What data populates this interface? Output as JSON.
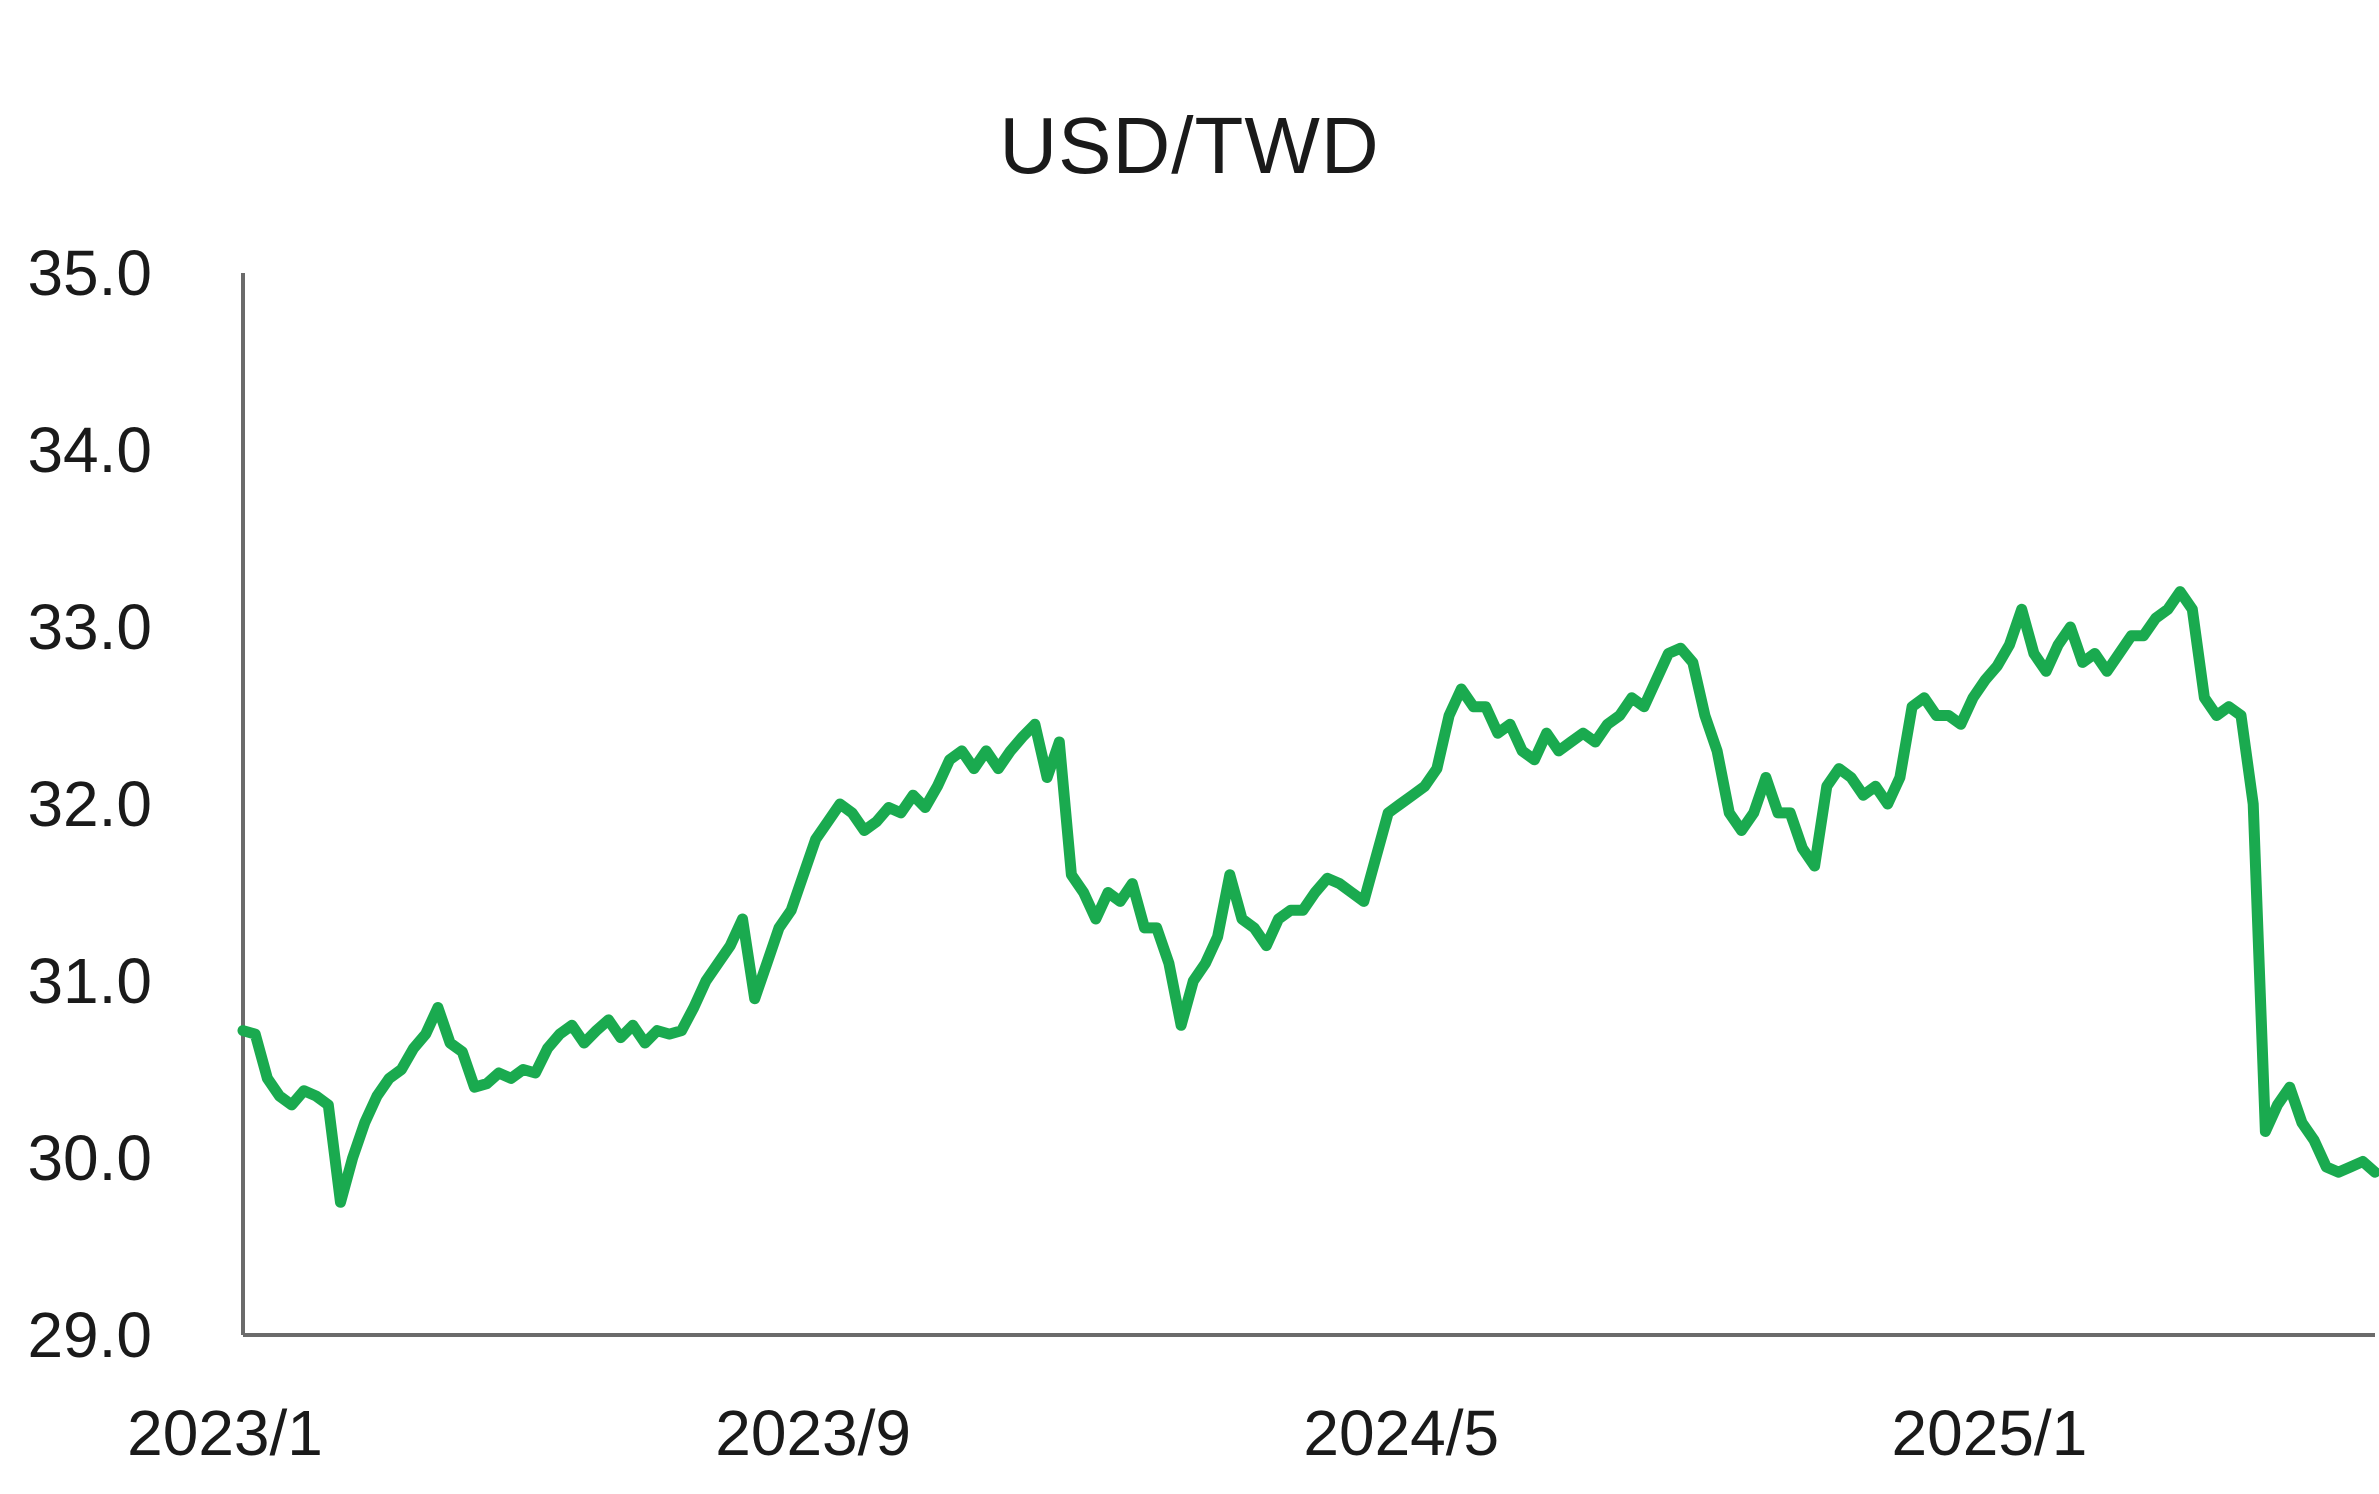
{
  "chart_data": {
    "type": "line",
    "title": "USD/TWD",
    "xlabel": "",
    "ylabel": "",
    "ylim": [
      29.0,
      35.0
    ],
    "yticks": [
      "35.0",
      "34.0",
      "33.0",
      "32.0",
      "31.0",
      "30.0",
      "29.0"
    ],
    "xticks": [
      "2023/1",
      "2023/9",
      "2024/5",
      "2025/1"
    ],
    "xlim": [
      "2023/1",
      "2025/6"
    ],
    "grid": false,
    "legend": "none",
    "line_color": "#1aaa4f",
    "series": [
      {
        "values": [
          30.72,
          30.7,
          30.45,
          30.35,
          30.3,
          30.38,
          30.35,
          30.3,
          29.75,
          30.0,
          30.2,
          30.35,
          30.45,
          30.5,
          30.62,
          30.7,
          30.85,
          30.65,
          30.6,
          30.4,
          30.42,
          30.48,
          30.45,
          30.5,
          30.48,
          30.62,
          30.7,
          30.75,
          30.65,
          30.72,
          30.78,
          30.68,
          30.75,
          30.65,
          30.72,
          30.7,
          30.72,
          30.85,
          31.0,
          31.1,
          31.2,
          31.35,
          30.9,
          31.1,
          31.3,
          31.4,
          31.6,
          31.8,
          31.9,
          32.0,
          31.95,
          31.85,
          31.9,
          31.98,
          31.95,
          32.05,
          31.98,
          32.1,
          32.25,
          32.3,
          32.2,
          32.3,
          32.2,
          32.3,
          32.38,
          32.45,
          32.15,
          32.35,
          31.6,
          31.5,
          31.35,
          31.5,
          31.45,
          31.55,
          31.3,
          31.3,
          31.1,
          30.75,
          31.0,
          31.1,
          31.25,
          31.6,
          31.35,
          31.3,
          31.2,
          31.35,
          31.4,
          31.4,
          31.5,
          31.58,
          31.55,
          31.5,
          31.45,
          31.7,
          31.95,
          32.0,
          32.05,
          32.1,
          32.2,
          32.5,
          32.65,
          32.55,
          32.55,
          32.4,
          32.45,
          32.3,
          32.25,
          32.4,
          32.3,
          32.35,
          32.4,
          32.35,
          32.45,
          32.5,
          32.6,
          32.55,
          32.7,
          32.85,
          32.88,
          32.8,
          32.5,
          32.3,
          31.95,
          31.85,
          31.95,
          32.15,
          31.95,
          31.95,
          31.75,
          31.65,
          32.1,
          32.2,
          32.15,
          32.05,
          32.1,
          32.0,
          32.15,
          32.55,
          32.6,
          32.5,
          32.5,
          32.45,
          32.6,
          32.7,
          32.78,
          32.9,
          33.1,
          32.85,
          32.75,
          32.9,
          33.0,
          32.8,
          32.85,
          32.75,
          32.85,
          32.95,
          32.95,
          33.05,
          33.1,
          33.2,
          33.1,
          32.6,
          32.5,
          32.55,
          32.5,
          32.0,
          30.15,
          30.3,
          30.4,
          30.2,
          30.1,
          29.95,
          29.92,
          29.95,
          29.98,
          29.92
        ]
      }
    ]
  }
}
